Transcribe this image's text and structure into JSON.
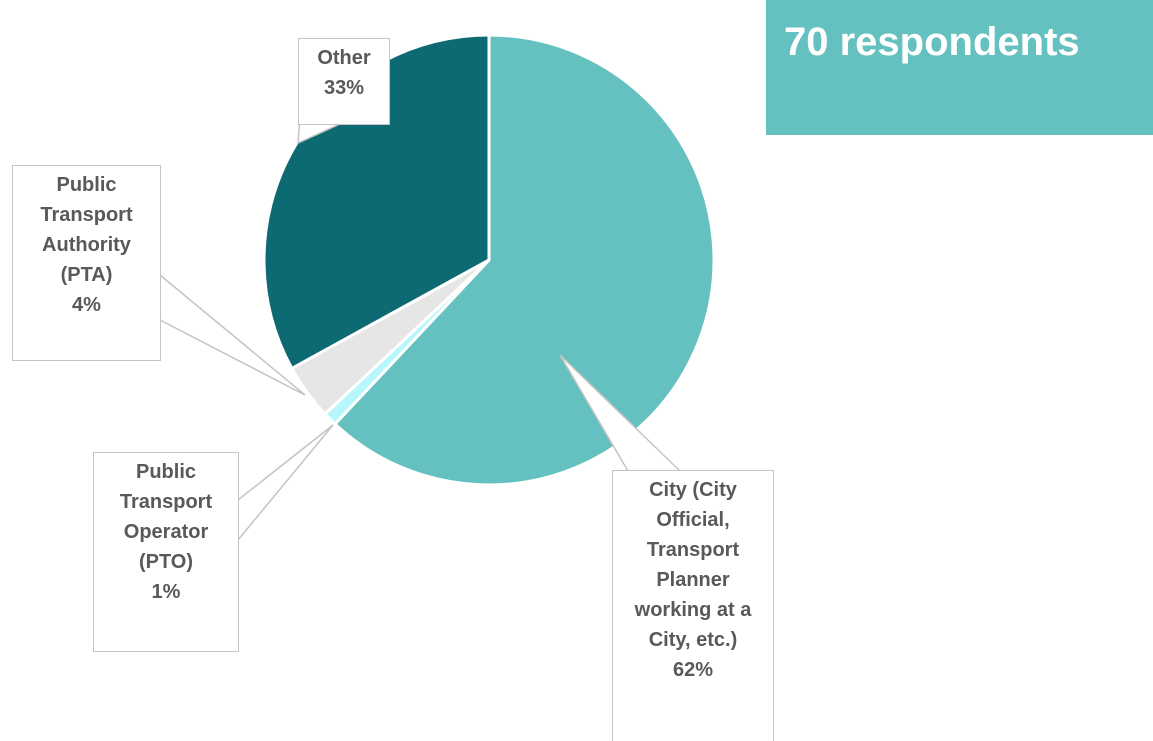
{
  "chart_data": {
    "type": "pie",
    "annotation": "70 respondents",
    "categories": [
      "City (City Official, Transport Planner working at a City, etc.)",
      "Public Transport Operator (PTO)",
      "Public Transport Authority (PTA)",
      "Other"
    ],
    "values": [
      62,
      1,
      4,
      33
    ],
    "value_labels": [
      "62%",
      "1%",
      "4%",
      "33%"
    ],
    "colors": [
      "#65c1bf",
      "#b5f7fb",
      "#e6e6e6",
      "#0d6a73"
    ]
  }
}
